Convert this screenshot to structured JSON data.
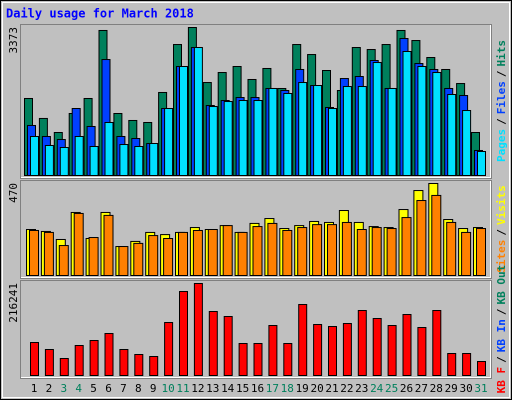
{
  "chart_data": [
    {
      "type": "bar",
      "title": "Daily usage for March 2018",
      "ylim": [
        0,
        3373
      ],
      "yticks": [
        3373
      ],
      "separator": "/",
      "series": [
        {
          "name": "Hits",
          "color": "#00805c",
          "values": [
            1755,
            1300,
            980,
            1413,
            1755,
            3305,
            1413,
            1254,
            1208,
            1892,
            2985,
            3373,
            2119,
            2347,
            2484,
            2188,
            2439,
            1983,
            2985,
            2757,
            2393,
            1937,
            2917,
            2871,
            2985,
            3305,
            3076,
            2689,
            2416,
            2096,
            980
          ]
        },
        {
          "name": "Files",
          "color": "#0040ff",
          "values": [
            1140,
            889,
            820,
            1527,
            1117,
            2643,
            889,
            843,
            729,
            1527,
            2484,
            2917,
            1595,
            1709,
            1777,
            1777,
            1983,
            1937,
            2416,
            2051,
            1550,
            2210,
            2256,
            2621,
            1983,
            3122,
            2552,
            2416,
            1983,
            1823,
            570
          ]
        },
        {
          "name": "Pages",
          "color": "#00e0ff",
          "values": [
            889,
            684,
            638,
            889,
            661,
            1208,
            706,
            661,
            729,
            1527,
            2484,
            2917,
            1572,
            1686,
            1709,
            1709,
            1983,
            1869,
            2119,
            2051,
            1527,
            2028,
            2028,
            2575,
            1983,
            2826,
            2484,
            2347,
            1846,
            1481,
            547
          ]
        }
      ]
    },
    {
      "type": "bar",
      "ylim": [
        0,
        470
      ],
      "yticks": [
        470
      ],
      "separator": "/",
      "series": [
        {
          "name": "Visits",
          "color": "#ffff00",
          "values": [
            235,
            225,
            184,
            322,
            189,
            322,
            148,
            174,
            220,
            209,
            220,
            245,
            235,
            255,
            220,
            266,
            291,
            240,
            255,
            276,
            271,
            332,
            271,
            250,
            245,
            337,
            434,
            470,
            286,
            240,
            245
          ]
        },
        {
          "name": "Sites",
          "color": "#ff8000",
          "values": [
            230,
            220,
            153,
            317,
            194,
            307,
            148,
            164,
            204,
            189,
            220,
            230,
            235,
            255,
            220,
            250,
            266,
            230,
            245,
            260,
            260,
            271,
            235,
            245,
            240,
            296,
            383,
            409,
            271,
            220,
            240
          ]
        }
      ]
    },
    {
      "type": "bar",
      "ylim": [
        0,
        216241
      ],
      "yticks": [
        216241
      ],
      "separator": "/",
      "categories": [
        "1",
        "2",
        "3",
        "4",
        "5",
        "6",
        "7",
        "8",
        "9",
        "10",
        "11",
        "12",
        "13",
        "14",
        "15",
        "16",
        "17",
        "18",
        "19",
        "20",
        "21",
        "22",
        "23",
        "24",
        "25",
        "26",
        "27",
        "28",
        "29",
        "30",
        "31"
      ],
      "category_colors": [
        "#000000",
        "#000000",
        "#00805c",
        "#00805c",
        "#000000",
        "#000000",
        "#000000",
        "#000000",
        "#000000",
        "#00805c",
        "#00805c",
        "#000000",
        "#000000",
        "#000000",
        "#000000",
        "#000000",
        "#00805c",
        "#00805c",
        "#000000",
        "#000000",
        "#000000",
        "#000000",
        "#000000",
        "#00805c",
        "#00805c",
        "#000000",
        "#000000",
        "#000000",
        "#000000",
        "#000000",
        "#00805c"
      ],
      "series": [
        {
          "name": "KB Out",
          "color": "#00805c"
        },
        {
          "name": "KB In",
          "color": "#0040ff"
        },
        {
          "name": "KB F",
          "color": "#ff0000",
          "values": [
            77550,
            61100,
            39950,
            70500,
            82250,
            98700,
            61100,
            49350,
            44650,
            124550,
            197400,
            216241,
            150400,
            138650,
            75200,
            75200,
            117500,
            75200,
            166850,
            119850,
            115150,
            122200,
            152750,
            133950,
            117500,
            143350,
            112800,
            152750,
            51700,
            51700,
            32900
          ]
        }
      ]
    }
  ]
}
